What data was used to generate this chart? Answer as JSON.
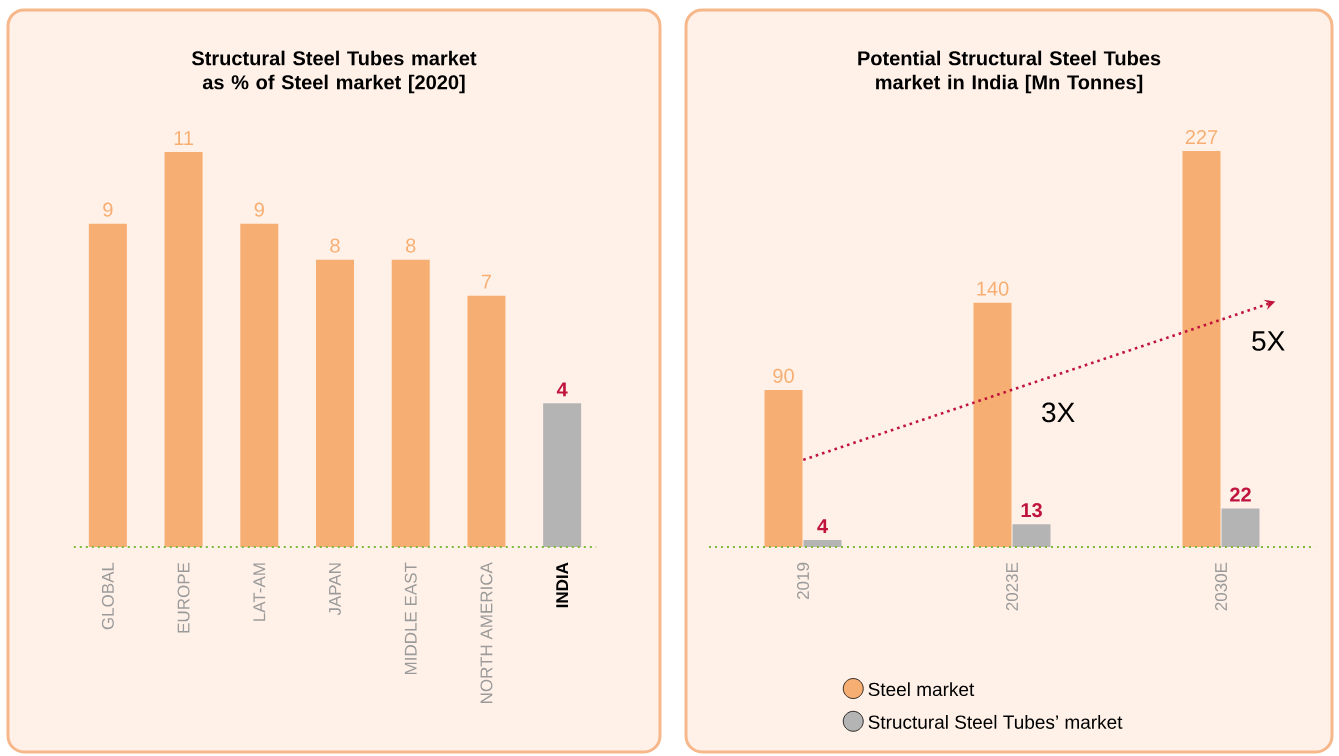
{
  "chart_data": [
    {
      "type": "bar",
      "title": "Structural Steel Tubes market as % of Steel market [2020]",
      "categories": [
        "GLOBAL",
        "EUROPE",
        "LAT-AM",
        "JAPAN",
        "MIDDLE EAST",
        "NORTH AMERICA",
        "INDIA"
      ],
      "values": [
        9,
        11,
        9,
        8,
        8,
        7,
        4
      ],
      "colors": [
        "#f7ae72",
        "#f7ae72",
        "#f7ae72",
        "#f7ae72",
        "#f7ae72",
        "#f7ae72",
        "#b4b4b4"
      ],
      "data_labels": true
    },
    {
      "type": "bar",
      "title": "Potential Structural Steel Tubes market in India [Mn Tonnes]",
      "categories": [
        "2019",
        "2023E",
        "2030E"
      ],
      "series": [
        {
          "name": "Steel market",
          "color": "#f7ae72",
          "values": [
            90,
            140,
            227
          ]
        },
        {
          "name": "Structural Steel Tubes’ market",
          "color": "#b4b4b4",
          "values": [
            4,
            13,
            22
          ]
        }
      ],
      "data_labels": true,
      "legend": "bottom",
      "annotations": [
        "3X",
        "5X"
      ]
    }
  ]
}
